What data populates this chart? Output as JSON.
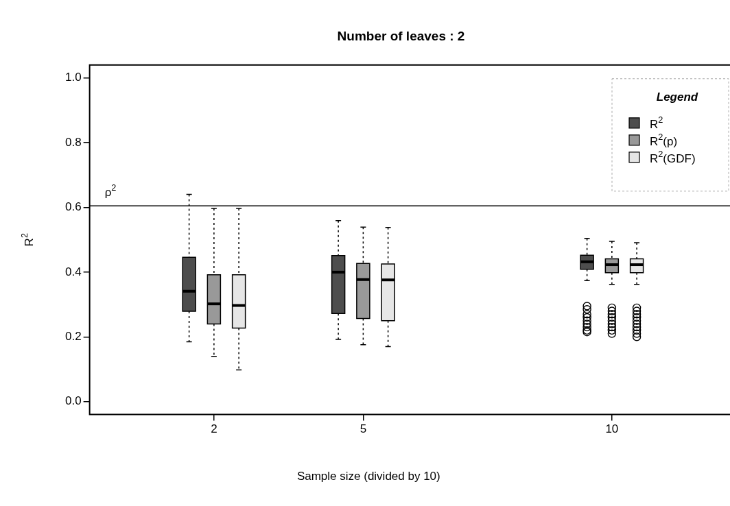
{
  "chart_data": {
    "type": "box",
    "title": "Number of leaves : 2",
    "xlabel": "Sample size (divided by 10)",
    "ylabel": "R$^{2}$",
    "x": [
      2,
      5,
      10
    ],
    "xlim": [
      -0.5,
      12.5
    ],
    "xticks": [
      2,
      5,
      10
    ],
    "ylim": [
      -0.04,
      1.04
    ],
    "yticks": [
      {
        "value": 0,
        "label": "0.0"
      },
      {
        "value": 0.2,
        "label": "0.2"
      },
      {
        "value": 0.4,
        "label": "0.4"
      },
      {
        "value": 0.6,
        "label": "0.6"
      },
      {
        "value": 0.8,
        "label": "0.8"
      },
      {
        "value": 1,
        "label": "1.0"
      }
    ],
    "grid": false,
    "legend": "top right",
    "legend_title": "Legend",
    "ref_lines": [
      {
        "axis": "y",
        "value": 0.605,
        "label": "ρ$^{2}$"
      }
    ],
    "series": [
      {
        "name": "R$^{2}$",
        "color": "#4d4d4d",
        "boxes": [
          {
            "low": 0.185,
            "q1": 0.279,
            "median": 0.341,
            "q3": 0.446,
            "high": 0.64
          },
          {
            "low": 0.192,
            "q1": 0.272,
            "median": 0.4,
            "q3": 0.451,
            "high": 0.559
          },
          {
            "low": 0.374,
            "q1": 0.409,
            "median": 0.432,
            "q3": 0.452,
            "high": 0.504,
            "outliers": [
              0.295,
              0.285,
              0.27,
              0.26,
              0.25,
              0.24,
              0.23,
              0.22,
              0.215
            ]
          }
        ]
      },
      {
        "name": "R$^{2}$(p)",
        "color": "#999999",
        "boxes": [
          {
            "low": 0.14,
            "q1": 0.24,
            "median": 0.302,
            "q3": 0.392,
            "high": 0.597
          },
          {
            "low": 0.176,
            "q1": 0.257,
            "median": 0.377,
            "q3": 0.427,
            "high": 0.539
          },
          {
            "low": 0.362,
            "q1": 0.398,
            "median": 0.423,
            "q3": 0.441,
            "high": 0.495,
            "outliers": [
              0.29,
              0.28,
              0.27,
              0.26,
              0.25,
              0.24,
              0.23,
              0.22,
              0.21
            ]
          }
        ]
      },
      {
        "name": "R$^{2}$(GDF)",
        "color": "#e6e6e6",
        "boxes": [
          {
            "low": 0.098,
            "q1": 0.227,
            "median": 0.297,
            "q3": 0.392,
            "high": 0.597
          },
          {
            "low": 0.17,
            "q1": 0.25,
            "median": 0.376,
            "q3": 0.425,
            "high": 0.538
          },
          {
            "low": 0.362,
            "q1": 0.398,
            "median": 0.423,
            "q3": 0.441,
            "high": 0.491,
            "outliers": [
              0.29,
              0.28,
              0.27,
              0.26,
              0.25,
              0.24,
              0.23,
              0.22,
              0.21,
              0.2
            ]
          }
        ]
      }
    ]
  }
}
